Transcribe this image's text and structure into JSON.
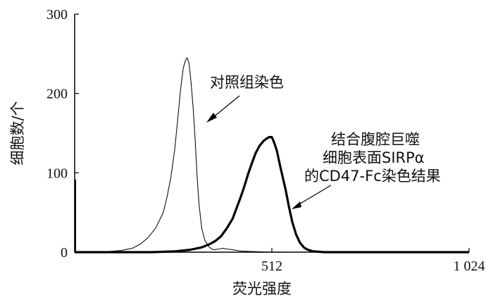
{
  "chart_data": {
    "type": "line",
    "xlabel": "荧光强度",
    "ylabel": "细胞数/个",
    "xlim": [
      0,
      1024
    ],
    "ylim": [
      0,
      300
    ],
    "x_ticks": [
      {
        "value": 512,
        "label": "512"
      },
      {
        "value": 1024,
        "label": "1 024"
      }
    ],
    "y_ticks": [
      {
        "value": 0,
        "label": "0"
      },
      {
        "value": 100,
        "label": "100"
      },
      {
        "value": 200,
        "label": "200"
      },
      {
        "value": 300,
        "label": "300"
      }
    ],
    "grid": false,
    "series": [
      {
        "name": "对照组染色",
        "color": "#111111",
        "style": "thin",
        "points": [
          [
            0,
            0
          ],
          [
            40,
            0
          ],
          [
            80,
            0.5
          ],
          [
            120,
            2
          ],
          [
            150,
            5
          ],
          [
            170,
            10
          ],
          [
            190,
            18
          ],
          [
            210,
            30
          ],
          [
            230,
            50
          ],
          [
            240,
            70
          ],
          [
            250,
            95
          ],
          [
            260,
            130
          ],
          [
            268,
            170
          ],
          [
            275,
            205
          ],
          [
            282,
            232
          ],
          [
            288,
            242
          ],
          [
            292,
            245
          ],
          [
            297,
            238
          ],
          [
            302,
            215
          ],
          [
            308,
            180
          ],
          [
            313,
            140
          ],
          [
            318,
            95
          ],
          [
            323,
            60
          ],
          [
            330,
            30
          ],
          [
            338,
            15
          ],
          [
            350,
            6
          ],
          [
            360,
            3
          ],
          [
            375,
            4
          ],
          [
            385,
            5
          ],
          [
            395,
            4
          ],
          [
            410,
            3
          ],
          [
            430,
            1.5
          ],
          [
            460,
            0.8
          ],
          [
            500,
            0.3
          ],
          [
            560,
            0.1
          ],
          [
            1024,
            0
          ]
        ]
      },
      {
        "name": "结合腹腔巨噬细胞表面SIRPα的CD47-Fc染色结果",
        "color": "#000000",
        "style": "thick",
        "points": [
          [
            0,
            0
          ],
          [
            200,
            0
          ],
          [
            260,
            1
          ],
          [
            300,
            3
          ],
          [
            330,
            6
          ],
          [
            350,
            10
          ],
          [
            365,
            14
          ],
          [
            380,
            20
          ],
          [
            395,
            30
          ],
          [
            410,
            42
          ],
          [
            420,
            55
          ],
          [
            430,
            68
          ],
          [
            440,
            82
          ],
          [
            450,
            98
          ],
          [
            460,
            112
          ],
          [
            470,
            125
          ],
          [
            480,
            134
          ],
          [
            490,
            140
          ],
          [
            498,
            143
          ],
          [
            505,
            145
          ],
          [
            512,
            145
          ],
          [
            518,
            138
          ],
          [
            525,
            128
          ],
          [
            532,
            112
          ],
          [
            540,
            95
          ],
          [
            548,
            78
          ],
          [
            556,
            58
          ],
          [
            565,
            38
          ],
          [
            575,
            22
          ],
          [
            585,
            12
          ],
          [
            595,
            6
          ],
          [
            605,
            3
          ],
          [
            620,
            1
          ],
          [
            650,
            0
          ],
          [
            1024,
            0
          ]
        ]
      }
    ],
    "annotations": {
      "control_label": "对照组染色",
      "treated_label_line1": "结合腹腔巨噬",
      "treated_label_line2": "细胞表面SIRPα",
      "treated_label_line3": "的CD47-Fc染色结果"
    }
  }
}
